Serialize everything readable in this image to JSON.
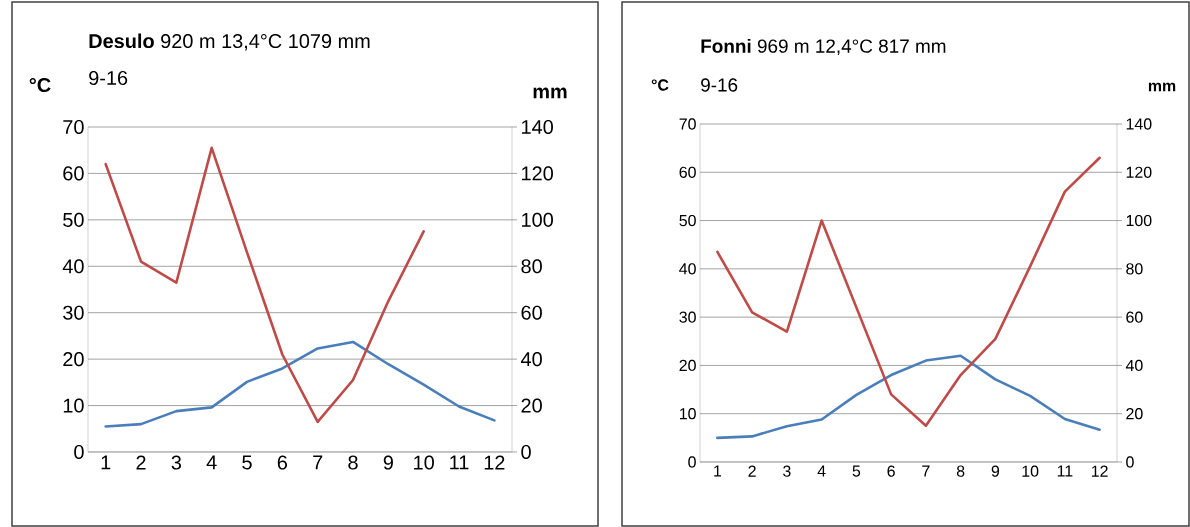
{
  "chart_data": [
    {
      "type": "line",
      "title": "**Desulo** 920 m 13,4°C 1079 mm",
      "subtitle": "9-16",
      "ylabel": "°C",
      "y2label": "mm",
      "categories": [
        "1",
        "2",
        "3",
        "4",
        "5",
        "6",
        "7",
        "8",
        "9",
        "10",
        "11",
        "12"
      ],
      "series": [
        {
          "color": "#4a7ebb",
          "values": [
            5.5,
            6.0,
            8.8,
            9.6,
            15.1,
            18.0,
            22.3,
            23.7,
            18.9,
            14.5,
            9.8,
            6.8
          ]
        },
        {
          "color": "#be4b48",
          "axis": "y2",
          "values": [
            124,
            82,
            73,
            131,
            86,
            42,
            13,
            31,
            65,
            95,
            null,
            null
          ]
        }
      ],
      "ylim": [
        0,
        70
      ],
      "yticks": [
        0,
        10,
        20,
        30,
        40,
        50,
        60,
        70
      ],
      "y2lim": [
        0,
        140
      ],
      "y2ticks": [
        0,
        20,
        40,
        60,
        80,
        100,
        120,
        140
      ],
      "grid": "y",
      "legend": false,
      "marker": "none",
      "line_style": "solid"
    },
    {
      "type": "line",
      "title": "**Fonni** 969 m 12,4°C 817 mm",
      "subtitle": "9-16",
      "ylabel": "°C",
      "y2label": "mm",
      "categories": [
        "1",
        "2",
        "3",
        "4",
        "5",
        "6",
        "7",
        "8",
        "9",
        "10",
        "11",
        "12"
      ],
      "series": [
        {
          "color": "#4a7ebb",
          "values": [
            5.0,
            5.3,
            7.4,
            8.8,
            13.9,
            18.0,
            21.0,
            22.0,
            17.1,
            13.7,
            8.9,
            6.7
          ]
        },
        {
          "color": "#be4b48",
          "axis": "y2",
          "values": [
            87,
            62,
            54,
            100,
            64,
            28,
            15,
            36,
            51,
            81,
            112,
            126
          ]
        }
      ],
      "ylim": [
        0,
        70
      ],
      "yticks": [
        0,
        10,
        20,
        30,
        40,
        50,
        60,
        70
      ],
      "y2lim": [
        0,
        140
      ],
      "y2ticks": [
        0,
        20,
        40,
        60,
        80,
        100,
        120,
        140
      ],
      "grid": "y",
      "legend": false,
      "marker": "none",
      "line_style": "solid"
    }
  ]
}
